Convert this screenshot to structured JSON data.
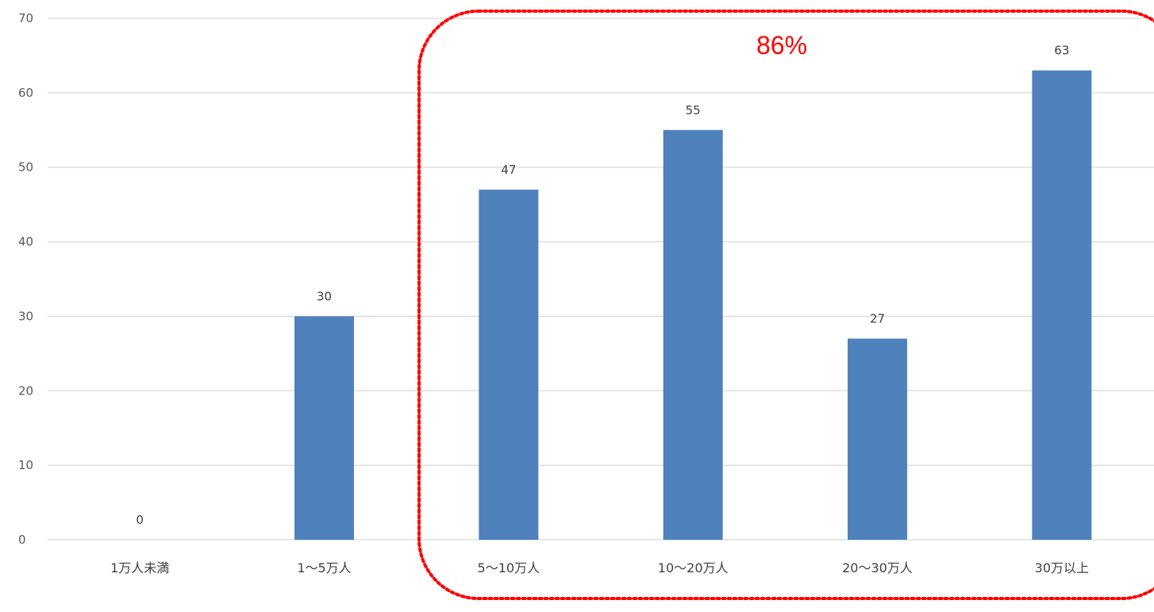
{
  "chart_data": {
    "type": "bar",
    "categories": [
      "1万人未満",
      "1〜5万人",
      "5〜10万人",
      "10〜20万人",
      "20〜30万人",
      "30万以上"
    ],
    "values": [
      0,
      30,
      47,
      55,
      27,
      63
    ],
    "data_labels": [
      "0",
      "30",
      "47",
      "55",
      "27",
      "63"
    ],
    "ylim": [
      0,
      70
    ],
    "yticks": [
      0,
      10,
      20,
      30,
      40,
      50,
      60,
      70
    ],
    "ytick_labels": [
      "0",
      "10",
      "20",
      "30",
      "40",
      "50",
      "60",
      "70"
    ],
    "grid": true,
    "title": "",
    "xlabel": "",
    "ylabel": "",
    "bar_color": "#4f81bd",
    "annotation": {
      "text": "86%",
      "color": "#ff0000",
      "style": "dotted rounded box enclosing the last four categories",
      "encloses_categories": [
        "5〜10万人",
        "10〜20万人",
        "20〜30万人",
        "30万以上"
      ]
    }
  }
}
